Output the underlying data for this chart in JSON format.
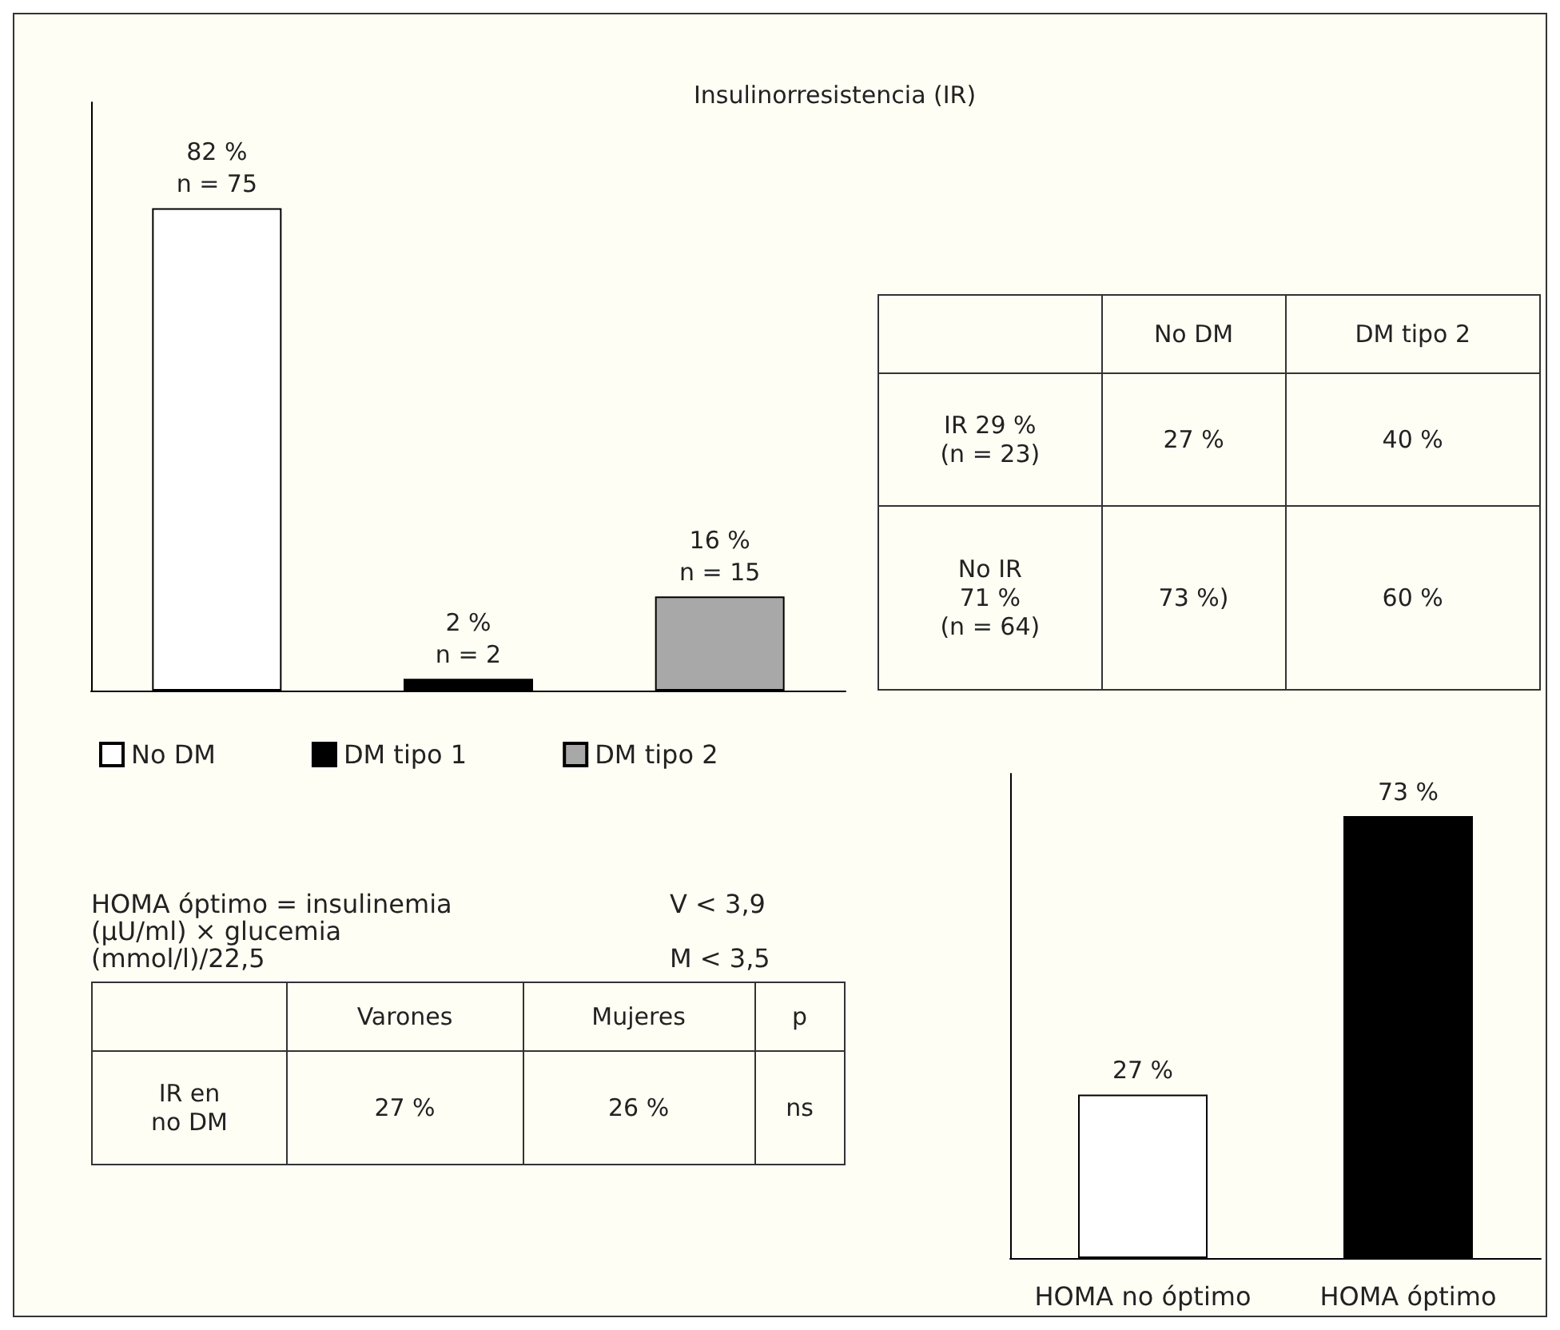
{
  "chart_data": [
    {
      "type": "bar",
      "title": "Insulinorresistencia (IR)",
      "categories": [
        null,
        null,
        null
      ],
      "legend": "bottom",
      "stacked": true,
      "series": [
        {
          "name": "No DM",
          "color": "#ffffff",
          "values": [
            82,
            null,
            null
          ],
          "value_labels": [
            "82 %\nn = 75",
            null,
            null
          ]
        },
        {
          "name": "DM tipo 1",
          "color": "#000000",
          "values": [
            null,
            2,
            null
          ],
          "value_labels": [
            null,
            "2 %\nn = 2",
            null
          ]
        },
        {
          "name": "DM tipo 2",
          "color": "#a8a8a8",
          "values": [
            null,
            null,
            16
          ],
          "value_labels": [
            null,
            null,
            "16 %\nn = 15"
          ]
        }
      ]
    },
    {
      "type": "other",
      "categories": [
        "No DM",
        "DM tipo 2"
      ],
      "y_categories": [
        "IR 29 %\n(n = 23)",
        "No IR\n71 %\n(n = 64)"
      ],
      "cell_labels": [
        [
          "27 %",
          "40 %"
        ],
        [
          "73 %)",
          "60 %"
        ]
      ]
    },
    {
      "type": "other",
      "title": "HOMA óptimo = insulinemia (µU/ml) × glucemia (mmol/l)/22,5",
      "annotations": [
        "V < 3,9",
        "M < 3,5"
      ],
      "categories": [
        "Varones",
        "Mujeres",
        "p"
      ],
      "y_categories": [
        "IR en\nno DM"
      ],
      "cell_labels": [
        [
          "27 %",
          "26 %",
          "ns"
        ]
      ]
    },
    {
      "type": "bar",
      "categories": [
        "HOMA no óptimo",
        "HOMA óptimo"
      ],
      "values": [
        27,
        73
      ],
      "colors": [
        "#ffffff",
        "#000000"
      ],
      "value_labels": [
        "27 %",
        "73 %"
      ]
    }
  ]
}
